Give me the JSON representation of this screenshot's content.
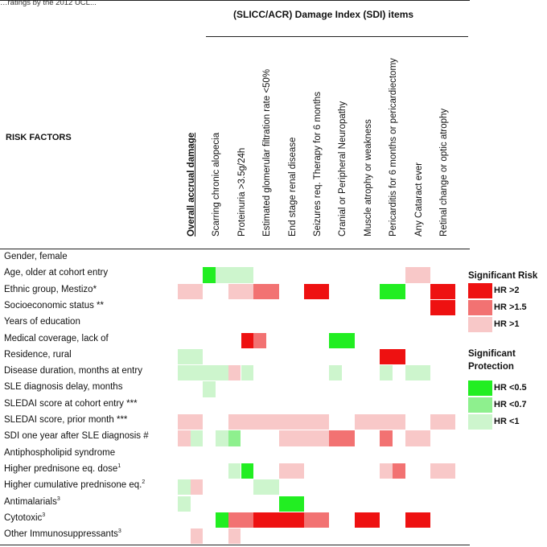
{
  "caption_fragment": "…ratings by the 2012 UCL...",
  "header": {
    "sdi_title": "(SLICC/ACR) Damage Index (SDI) items",
    "risk_factors": "RISK FACTORS"
  },
  "columns": [
    "Overall accrual damage",
    "Scarring chronic alopecia",
    "Proteinuria >3.5g/24h",
    "Estimated glomerular filtration rate <50%",
    "End stage renal disease",
    "Seizures req. Therapy for 6 months",
    "Cranial or Peripheral Neuropathy",
    "Muscle atrophy or weakness",
    "Pericarditis for 6 months or pericardiectomy",
    "Any Cataract ever",
    "Retinal change or optic atrophy"
  ],
  "rows": [
    {
      "label": "Gender, female",
      "sup": ""
    },
    {
      "label": "Age, older at cohort entry",
      "sup": ""
    },
    {
      "label": "Ethnic group, Mestizo*",
      "sup": ""
    },
    {
      "label": "Socioeconomic status **",
      "sup": ""
    },
    {
      "label": "Years of education",
      "sup": ""
    },
    {
      "label": "Medical coverage, lack of",
      "sup": ""
    },
    {
      "label": "Residence, rural",
      "sup": ""
    },
    {
      "label": "Disease duration, months at entry",
      "sup": ""
    },
    {
      "label": "SLE diagnosis delay, months",
      "sup": ""
    },
    {
      "label": "SLEDAI score at cohort entry ***",
      "sup": ""
    },
    {
      "label": "SLEDAI score, prior month ***",
      "sup": ""
    },
    {
      "label": "SDI one year after SLE diagnosis #",
      "sup": ""
    },
    {
      "label": "Antiphospholipid syndrome",
      "sup": ""
    },
    {
      "label": "Higher prednisone eq. dose",
      "sup": "1"
    },
    {
      "label": "Higher cumulative prednisone eq.",
      "sup": "2"
    },
    {
      "label": "Antimalarials",
      "sup": "3"
    },
    {
      "label": "Cytotoxic",
      "sup": "3"
    },
    {
      "label": "Other Immunosuppressants",
      "sup": "3"
    }
  ],
  "colors": {
    "risk_hr2": "#ee1111",
    "risk_hr15": "#f27272",
    "risk_hr1": "#f8c8c8",
    "prot_05": "#22ee22",
    "prot_07": "#8ef08e",
    "prot_1": "#cdf5cd"
  },
  "legend": {
    "risk_title": "Significant Risk",
    "protection_title": "Significant Protection",
    "protection_title_line1": "Significant",
    "protection_title_line2": "Protection",
    "items": [
      {
        "key": "risk_hr2",
        "label": "HR >2"
      },
      {
        "key": "risk_hr15",
        "label": "HR >1.5"
      },
      {
        "key": "risk_hr1",
        "label": "HR >1"
      },
      {
        "key": "prot_05",
        "label": "HR <0.5"
      },
      {
        "key": "prot_07",
        "label": "HR <0.7"
      },
      {
        "key": "prot_1",
        "label": "HR <1"
      }
    ]
  },
  "heatmap": [
    {
      "row": 1,
      "col": 1,
      "part": "left",
      "level": "prot_05"
    },
    {
      "row": 1,
      "col": 1,
      "part": "right",
      "level": "prot_1"
    },
    {
      "row": 1,
      "col": 2,
      "part": "full",
      "level": "prot_1"
    },
    {
      "row": 1,
      "col": 9,
      "part": "full",
      "level": "risk_hr1"
    },
    {
      "row": 2,
      "col": 0,
      "part": "full",
      "level": "risk_hr1"
    },
    {
      "row": 2,
      "col": 2,
      "part": "full",
      "level": "risk_hr1"
    },
    {
      "row": 2,
      "col": 3,
      "part": "full",
      "level": "risk_hr15"
    },
    {
      "row": 2,
      "col": 5,
      "part": "full",
      "level": "risk_hr2"
    },
    {
      "row": 2,
      "col": 8,
      "part": "full",
      "level": "prot_05"
    },
    {
      "row": 2,
      "col": 10,
      "part": "full",
      "level": "risk_hr2"
    },
    {
      "row": 3,
      "col": 10,
      "part": "full",
      "level": "risk_hr2"
    },
    {
      "row": 5,
      "col": 2,
      "part": "right",
      "level": "risk_hr2"
    },
    {
      "row": 5,
      "col": 3,
      "part": "left",
      "level": "risk_hr15"
    },
    {
      "row": 5,
      "col": 6,
      "part": "full",
      "level": "prot_05"
    },
    {
      "row": 6,
      "col": 0,
      "part": "full",
      "level": "prot_1"
    },
    {
      "row": 6,
      "col": 8,
      "part": "full",
      "level": "risk_hr2"
    },
    {
      "row": 7,
      "col": 0,
      "part": "full",
      "level": "prot_1"
    },
    {
      "row": 7,
      "col": 1,
      "part": "full",
      "level": "prot_1"
    },
    {
      "row": 7,
      "col": 2,
      "part": "left",
      "level": "risk_hr1"
    },
    {
      "row": 7,
      "col": 2,
      "part": "right",
      "level": "prot_1"
    },
    {
      "row": 7,
      "col": 6,
      "part": "left",
      "level": "prot_1"
    },
    {
      "row": 7,
      "col": 8,
      "part": "left",
      "level": "prot_1"
    },
    {
      "row": 7,
      "col": 9,
      "part": "full",
      "level": "prot_1"
    },
    {
      "row": 8,
      "col": 1,
      "part": "left",
      "level": "prot_1"
    },
    {
      "row": 10,
      "col": 0,
      "part": "full",
      "level": "risk_hr1"
    },
    {
      "row": 10,
      "col": 2,
      "part": "full",
      "level": "risk_hr1"
    },
    {
      "row": 10,
      "col": 3,
      "part": "full",
      "level": "risk_hr1"
    },
    {
      "row": 10,
      "col": 4,
      "part": "full",
      "level": "risk_hr1"
    },
    {
      "row": 10,
      "col": 5,
      "part": "full",
      "level": "risk_hr1"
    },
    {
      "row": 10,
      "col": 7,
      "part": "full",
      "level": "risk_hr1"
    },
    {
      "row": 10,
      "col": 8,
      "part": "full",
      "level": "risk_hr1"
    },
    {
      "row": 10,
      "col": 10,
      "part": "full",
      "level": "risk_hr1"
    },
    {
      "row": 11,
      "col": 0,
      "part": "left",
      "level": "risk_hr1"
    },
    {
      "row": 11,
      "col": 0,
      "part": "right",
      "level": "prot_1"
    },
    {
      "row": 11,
      "col": 1,
      "part": "right",
      "level": "prot_1"
    },
    {
      "row": 11,
      "col": 2,
      "part": "left",
      "level": "prot_07"
    },
    {
      "row": 11,
      "col": 4,
      "part": "full",
      "level": "risk_hr1"
    },
    {
      "row": 11,
      "col": 5,
      "part": "full",
      "level": "risk_hr1"
    },
    {
      "row": 11,
      "col": 6,
      "part": "full",
      "level": "risk_hr15"
    },
    {
      "row": 11,
      "col": 8,
      "part": "left",
      "level": "risk_hr15"
    },
    {
      "row": 11,
      "col": 9,
      "part": "full",
      "level": "risk_hr1"
    },
    {
      "row": 13,
      "col": 2,
      "part": "left",
      "level": "prot_1"
    },
    {
      "row": 13,
      "col": 2,
      "part": "right",
      "level": "prot_05"
    },
    {
      "row": 13,
      "col": 4,
      "part": "full",
      "level": "risk_hr1"
    },
    {
      "row": 13,
      "col": 8,
      "part": "left",
      "level": "risk_hr1"
    },
    {
      "row": 13,
      "col": 8,
      "part": "right",
      "level": "risk_hr15"
    },
    {
      "row": 13,
      "col": 10,
      "part": "full",
      "level": "risk_hr1"
    },
    {
      "row": 14,
      "col": 0,
      "part": "left",
      "level": "prot_1"
    },
    {
      "row": 14,
      "col": 0,
      "part": "right",
      "level": "risk_hr1"
    },
    {
      "row": 14,
      "col": 3,
      "part": "full",
      "level": "prot_1"
    },
    {
      "row": 15,
      "col": 0,
      "part": "left",
      "level": "prot_1"
    },
    {
      "row": 15,
      "col": 4,
      "part": "full",
      "level": "prot_05"
    },
    {
      "row": 16,
      "col": 1,
      "part": "right",
      "level": "prot_05"
    },
    {
      "row": 16,
      "col": 2,
      "part": "full",
      "level": "risk_hr15"
    },
    {
      "row": 16,
      "col": 3,
      "part": "full",
      "level": "risk_hr2"
    },
    {
      "row": 16,
      "col": 4,
      "part": "full",
      "level": "risk_hr2"
    },
    {
      "row": 16,
      "col": 5,
      "part": "full",
      "level": "risk_hr15"
    },
    {
      "row": 16,
      "col": 7,
      "part": "full",
      "level": "risk_hr2"
    },
    {
      "row": 16,
      "col": 9,
      "part": "full",
      "level": "risk_hr2"
    },
    {
      "row": 17,
      "col": 0,
      "part": "right",
      "level": "risk_hr1"
    },
    {
      "row": 17,
      "col": 2,
      "part": "left",
      "level": "risk_hr1"
    }
  ]
}
